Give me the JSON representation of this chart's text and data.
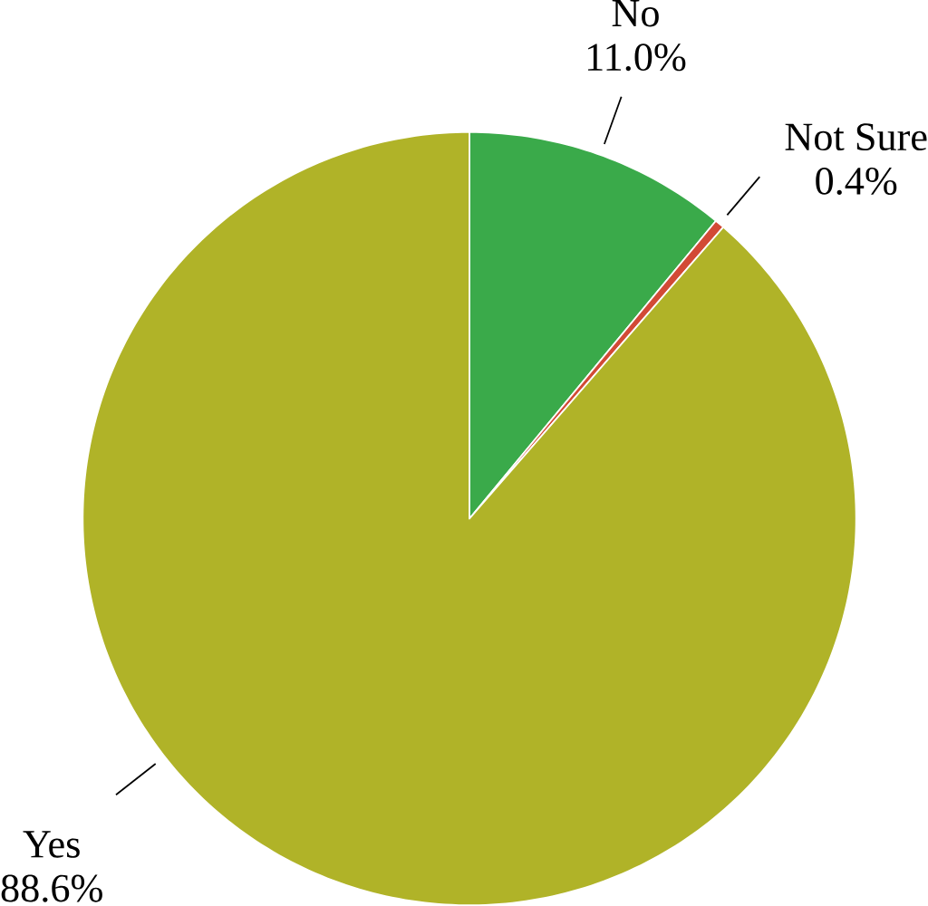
{
  "chart_data": {
    "type": "pie",
    "categories": [
      "No",
      "Not Sure",
      "Yes"
    ],
    "values": [
      11.0,
      0.4,
      88.6
    ],
    "value_labels": [
      "11.0%",
      "0.4%",
      "88.6%"
    ],
    "colors": [
      "#3aaa4a",
      "#d24a36",
      "#b0b328"
    ]
  }
}
